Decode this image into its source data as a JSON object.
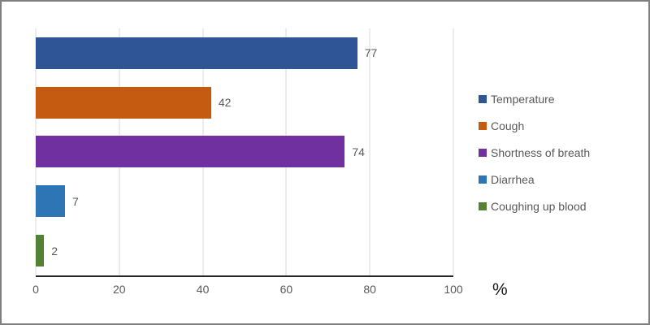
{
  "frame": {
    "background": "#FFFFFF",
    "border_color": "#7F7F7F"
  },
  "chart_data": {
    "type": "bar",
    "orientation": "horizontal",
    "title": "",
    "categories": [
      "Temperature",
      "Cough",
      "Shortness of breath",
      "Diarrhea",
      "Coughing up blood"
    ],
    "values": [
      77,
      42,
      74,
      7,
      2
    ],
    "colors": [
      "#2F5597",
      "#C55A11",
      "#7030A0",
      "#2E75B6",
      "#548235"
    ],
    "data_labels_shown": true,
    "xlabel": "%",
    "ylabel": "",
    "xlim": [
      0,
      100
    ],
    "xticks": [
      0,
      20,
      40,
      60,
      80,
      100
    ],
    "grid": true,
    "legend": {
      "position": "right",
      "entries": [
        "Temperature",
        "Cough",
        "Shortness of breath",
        "Diarrhea",
        "Coughing up blood"
      ]
    }
  },
  "styles": {
    "gridline_color": "#D9D9D9",
    "axis_line_color": "#262626",
    "tick_label_color": "#595959",
    "data_label_color": "#595959",
    "legend_text_color": "#595959",
    "unit_label_color": "#1A1A1A",
    "frame_border_color": "#7F7F7F",
    "frame_background": "#FFFFFF"
  }
}
